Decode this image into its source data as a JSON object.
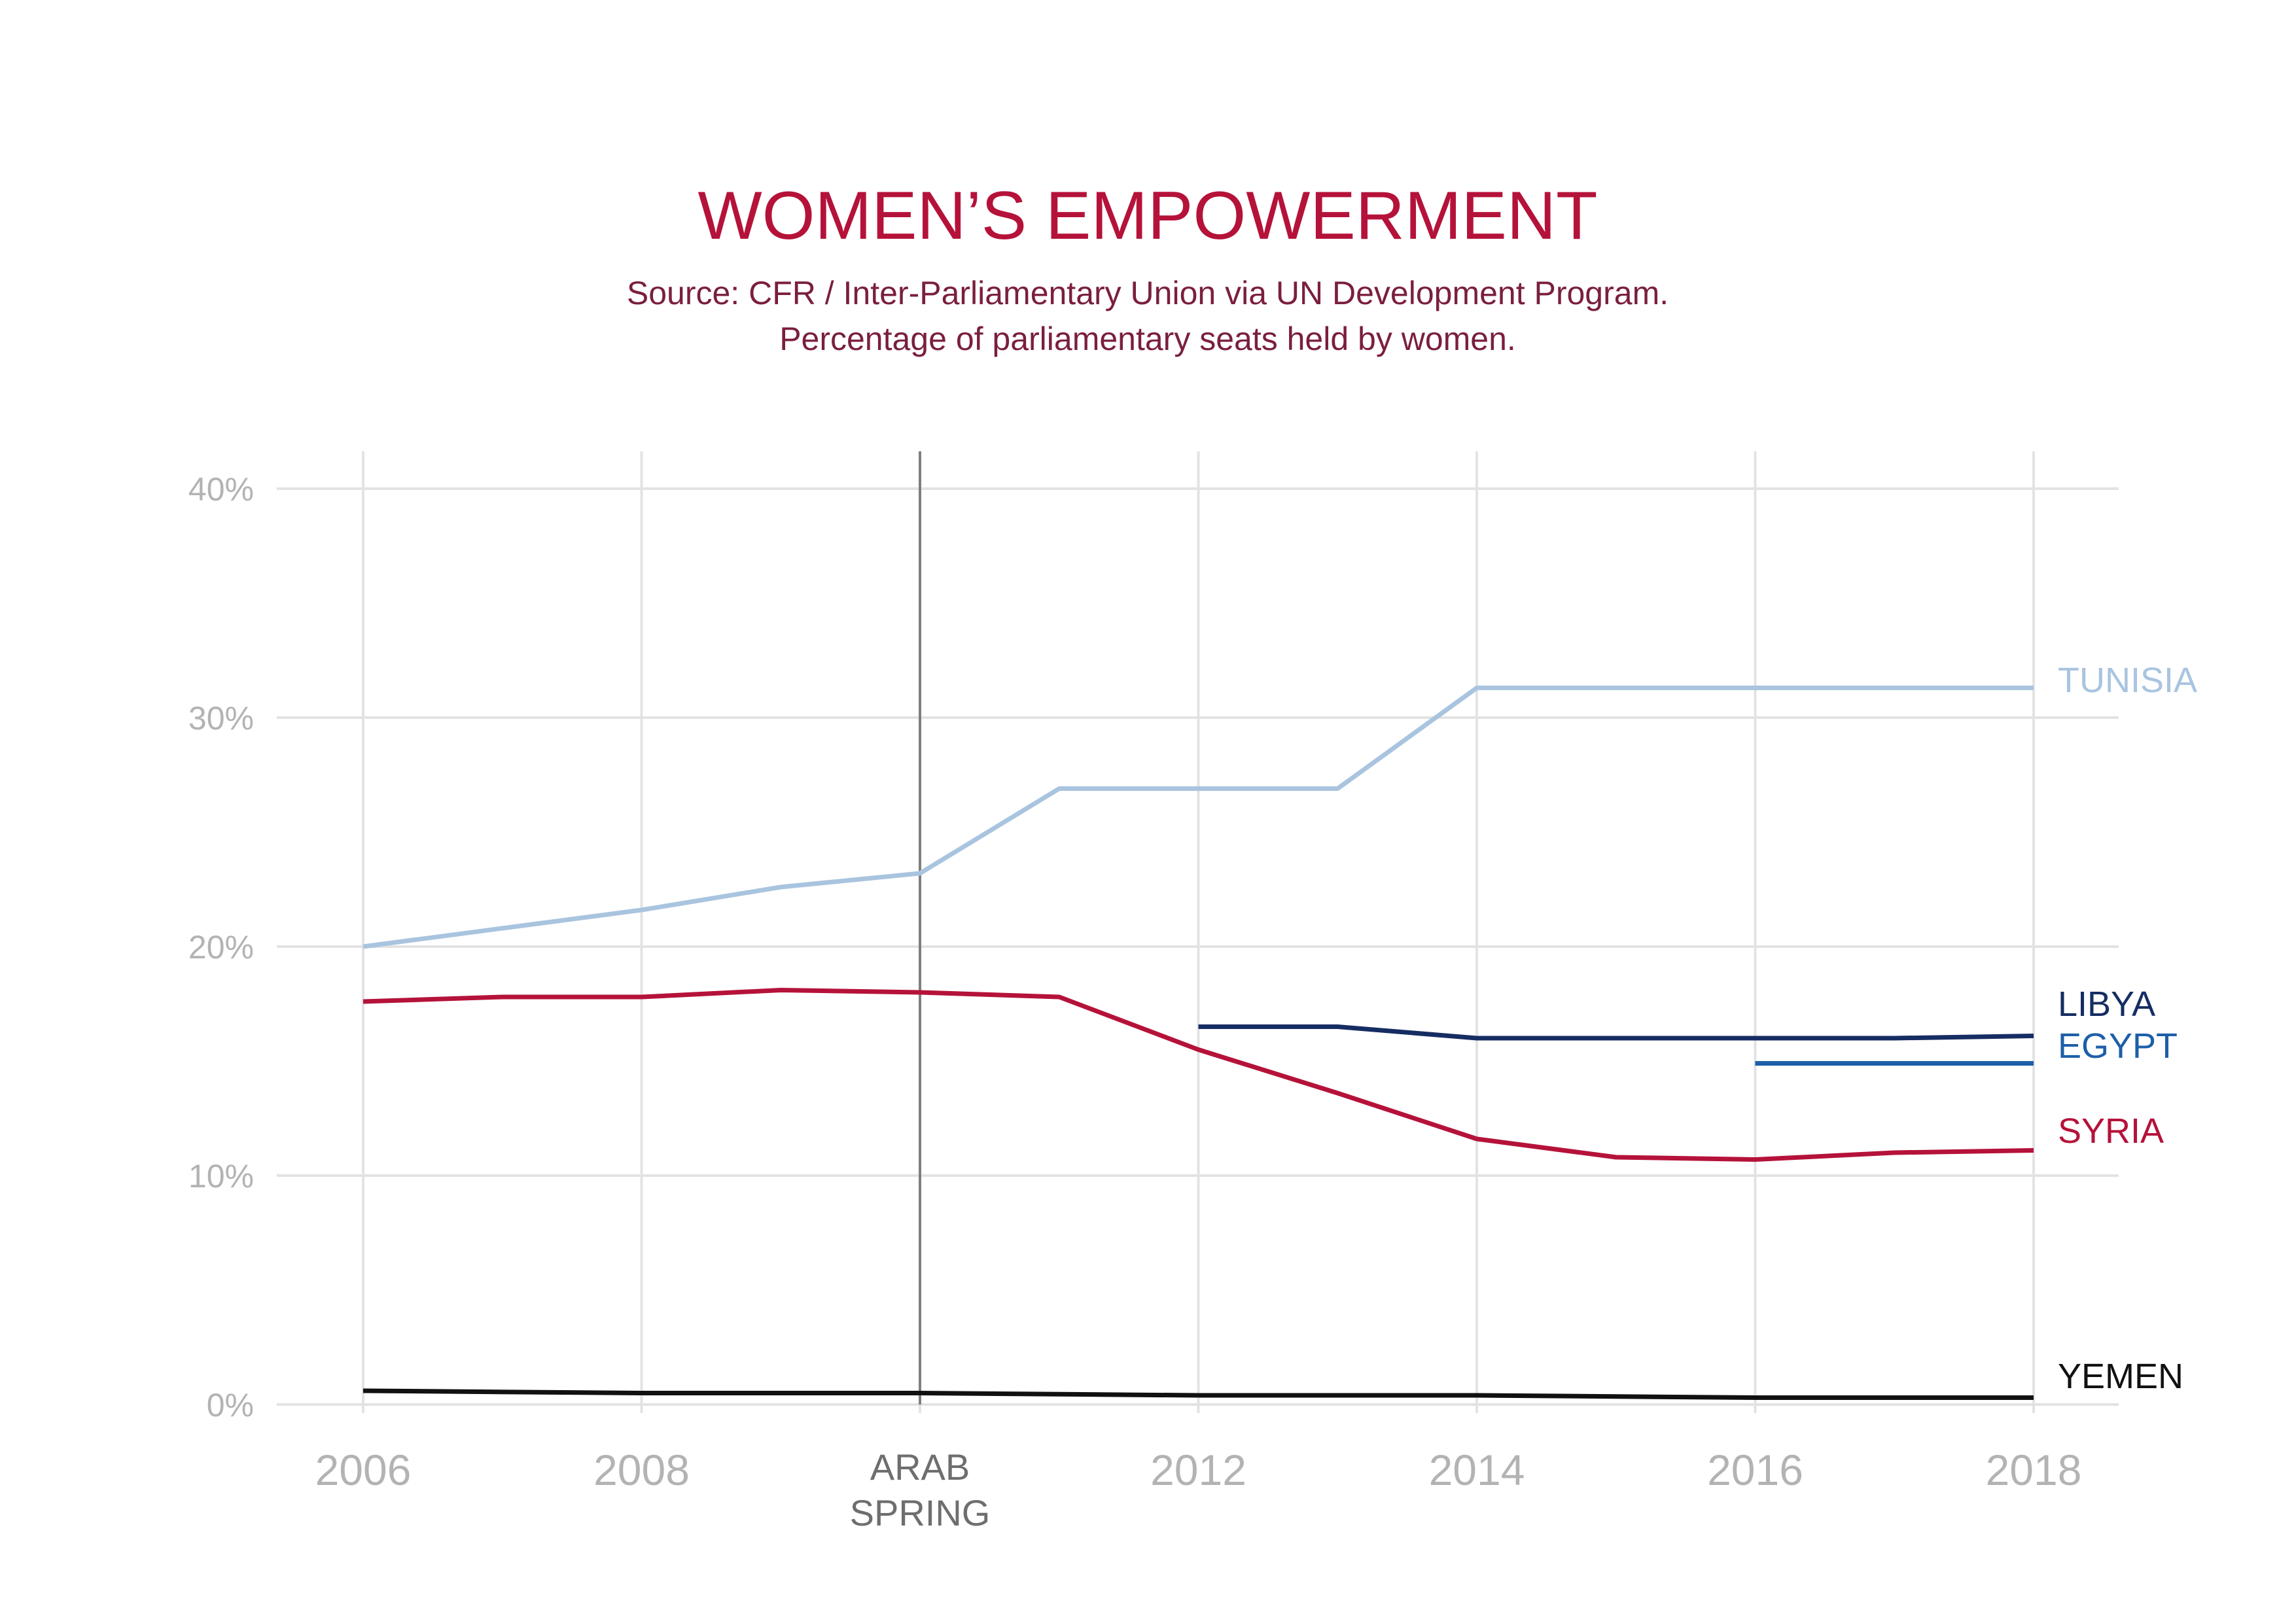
{
  "chart_data": {
    "type": "line",
    "title": "WOMEN’S EMPOWERMENT",
    "subtitle": [
      "Source: CFR / Inter-Parliamentary Union via UN Development Program.",
      "Percentage of parliamentary seats held by women."
    ],
    "xlabel": "",
    "ylabel": "",
    "x_ticks": [
      2006,
      2008,
      2010,
      2012,
      2014,
      2016,
      2018
    ],
    "x_tick_labels": [
      "2006",
      "2008",
      "",
      "2012",
      "2014",
      "2016",
      "2018"
    ],
    "xlim": [
      2006,
      2018
    ],
    "y_ticks": [
      0,
      10,
      20,
      30,
      40
    ],
    "y_tick_labels": [
      "0%",
      "10%",
      "20%",
      "30%",
      "40%"
    ],
    "ylim": [
      0,
      40
    ],
    "grid": true,
    "annotations": [
      {
        "x": 2010,
        "label_lines": [
          "ARAB",
          "SPRING"
        ]
      }
    ],
    "series": [
      {
        "name": "TUNISIA",
        "color": "#a9c4df",
        "points": [
          [
            2006,
            20.0
          ],
          [
            2007,
            20.8
          ],
          [
            2008,
            21.6
          ],
          [
            2009,
            22.6
          ],
          [
            2010,
            23.2
          ],
          [
            2011,
            26.9
          ],
          [
            2012,
            26.9
          ],
          [
            2013,
            26.9
          ],
          [
            2014,
            31.3
          ],
          [
            2015,
            31.3
          ],
          [
            2016,
            31.3
          ],
          [
            2017,
            31.3
          ],
          [
            2018,
            31.3
          ]
        ]
      },
      {
        "name": "LIBYA",
        "color": "#152d63",
        "points": [
          [
            2012,
            16.5
          ],
          [
            2013,
            16.5
          ],
          [
            2014,
            16.0
          ],
          [
            2015,
            16.0
          ],
          [
            2016,
            16.0
          ],
          [
            2017,
            16.0
          ],
          [
            2018,
            16.1
          ]
        ]
      },
      {
        "name": "EGYPT",
        "color": "#1d5fa8",
        "points": [
          [
            2016,
            14.9
          ],
          [
            2017,
            14.9
          ],
          [
            2018,
            14.9
          ]
        ]
      },
      {
        "name": "SYRIA",
        "color": "#b5123a",
        "points": [
          [
            2006,
            17.6
          ],
          [
            2007,
            17.8
          ],
          [
            2008,
            17.8
          ],
          [
            2009,
            18.1
          ],
          [
            2010,
            18.0
          ],
          [
            2011,
            17.8
          ],
          [
            2012,
            15.5
          ],
          [
            2013,
            13.6
          ],
          [
            2014,
            11.6
          ],
          [
            2015,
            10.8
          ],
          [
            2016,
            10.7
          ],
          [
            2017,
            11.0
          ],
          [
            2018,
            11.1
          ]
        ]
      },
      {
        "name": "YEMEN",
        "color": "#111111",
        "points": [
          [
            2006,
            0.6
          ],
          [
            2008,
            0.5
          ],
          [
            2010,
            0.5
          ],
          [
            2012,
            0.4
          ],
          [
            2014,
            0.4
          ],
          [
            2016,
            0.3
          ],
          [
            2018,
            0.3
          ]
        ]
      }
    ]
  },
  "colors": {
    "title": "#b5123a",
    "subtitle": "#7a1f3d",
    "tick": "#b3b3b3",
    "grid": "#e3e3e3",
    "annotation_line": "#7f7f7f",
    "annotation_text": "#6e6e6e"
  }
}
